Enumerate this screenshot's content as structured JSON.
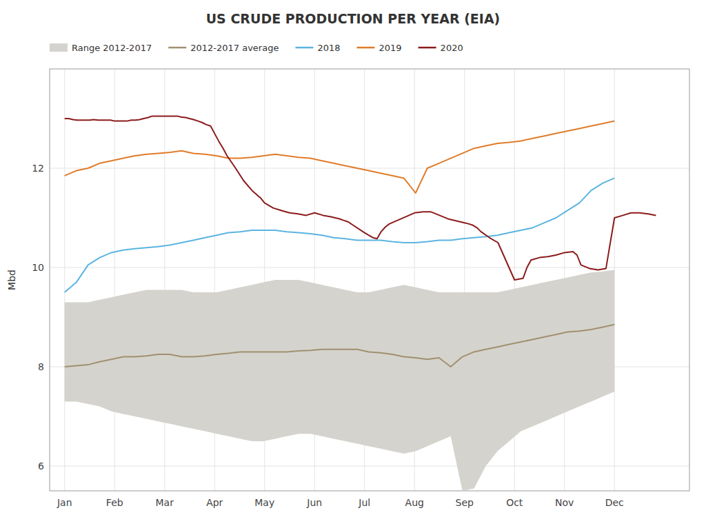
{
  "chart_data": {
    "type": "line",
    "title": "US CRUDE PRODUCTION PER YEAR (EIA)",
    "y_label": "Mbd",
    "xlim": [
      -0.3,
      12.5
    ],
    "xticks": [
      {
        "value": 0,
        "label": "Jan"
      },
      {
        "value": 1,
        "label": "Feb"
      },
      {
        "value": 2,
        "label": "Mar"
      },
      {
        "value": 3,
        "label": "Apr"
      },
      {
        "value": 4,
        "label": "May"
      },
      {
        "value": 5,
        "label": "Jun"
      },
      {
        "value": 6,
        "label": "Jul"
      },
      {
        "value": 7,
        "label": "Aug"
      },
      {
        "value": 8,
        "label": "Sep"
      },
      {
        "value": 9,
        "label": "Oct"
      },
      {
        "value": 10,
        "label": "Nov"
      },
      {
        "value": 11,
        "label": "Dec"
      }
    ],
    "ylim": [
      5.5,
      14.0
    ],
    "yticks": [
      6,
      8,
      10,
      12
    ],
    "grid": true,
    "legend": "upper left",
    "series": [
      {
        "name": "Range 2012-2017",
        "type": "band",
        "color": "#d5d3cd",
        "x": [
          0,
          0.234043,
          0.468085,
          0.702128,
          0.93617,
          1.170213,
          1.404255,
          1.638298,
          1.87234,
          2.106383,
          2.340426,
          2.574468,
          2.808511,
          3.042553,
          3.276596,
          3.510638,
          3.744681,
          3.978723,
          4.212766,
          4.446809,
          4.680851,
          4.914894,
          5.148936,
          5.382979,
          5.617021,
          5.851064,
          6.085106,
          6.319149,
          6.553191,
          6.787234,
          7.021277,
          7.255319,
          7.489362,
          7.723404,
          7.957447,
          8.191489,
          8.425532,
          8.659574,
          8.893617,
          9.12766,
          9.361702,
          9.595745,
          9.829787,
          10.06383,
          10.297872,
          10.531915,
          10.765957,
          11
        ],
        "lower": [
          7.3,
          7.3,
          7.25,
          7.2,
          7.1,
          7.05,
          7.0,
          6.95,
          6.9,
          6.85,
          6.8,
          6.75,
          6.7,
          6.65,
          6.6,
          6.55,
          6.5,
          6.5,
          6.55,
          6.6,
          6.65,
          6.65,
          6.6,
          6.55,
          6.5,
          6.45,
          6.4,
          6.35,
          6.3,
          6.25,
          6.3,
          6.4,
          6.5,
          6.6,
          5.5,
          5.55,
          6.0,
          6.3,
          6.5,
          6.7,
          6.8,
          6.9,
          7.0,
          7.1,
          7.2,
          7.3,
          7.4,
          7.5
        ],
        "upper": [
          9.3,
          9.3,
          9.3,
          9.35,
          9.4,
          9.45,
          9.5,
          9.55,
          9.55,
          9.55,
          9.55,
          9.5,
          9.5,
          9.5,
          9.55,
          9.6,
          9.65,
          9.7,
          9.75,
          9.75,
          9.75,
          9.7,
          9.65,
          9.6,
          9.55,
          9.5,
          9.5,
          9.55,
          9.6,
          9.65,
          9.6,
          9.55,
          9.5,
          9.5,
          9.5,
          9.5,
          9.5,
          9.5,
          9.55,
          9.6,
          9.65,
          9.7,
          9.75,
          9.8,
          9.85,
          9.9,
          9.92,
          9.95
        ]
      },
      {
        "name": "2012-2017 average",
        "type": "line",
        "color": "#a09070",
        "x": [
          0,
          0.234043,
          0.468085,
          0.702128,
          0.93617,
          1.170213,
          1.404255,
          1.638298,
          1.87234,
          2.106383,
          2.340426,
          2.574468,
          2.808511,
          3.042553,
          3.276596,
          3.510638,
          3.744681,
          3.978723,
          4.212766,
          4.446809,
          4.680851,
          4.914894,
          5.148936,
          5.382979,
          5.617021,
          5.851064,
          6.085106,
          6.319149,
          6.553191,
          6.787234,
          7.021277,
          7.255319,
          7.489362,
          7.723404,
          7.957447,
          8.191489,
          8.425532,
          8.659574,
          8.893617,
          9.12766,
          9.361702,
          9.595745,
          9.829787,
          10.06383,
          10.297872,
          10.531915,
          10.765957,
          11
        ],
        "values": [
          8.0,
          8.02,
          8.04,
          8.1,
          8.15,
          8.2,
          8.2,
          8.22,
          8.25,
          8.25,
          8.2,
          8.2,
          8.22,
          8.25,
          8.27,
          8.3,
          8.3,
          8.3,
          8.3,
          8.3,
          8.32,
          8.33,
          8.35,
          8.35,
          8.35,
          8.35,
          8.3,
          8.28,
          8.25,
          8.2,
          8.18,
          8.15,
          8.18,
          8.0,
          8.2,
          8.3,
          8.35,
          8.4,
          8.45,
          8.5,
          8.55,
          8.6,
          8.65,
          8.7,
          8.72,
          8.75,
          8.8,
          8.85
        ]
      },
      {
        "name": "2018",
        "type": "line",
        "color": "#5ab4e0",
        "x": [
          0,
          0.234043,
          0.468085,
          0.702128,
          0.93617,
          1.170213,
          1.404255,
          1.638298,
          1.87234,
          2.106383,
          2.340426,
          2.574468,
          2.808511,
          3.042553,
          3.276596,
          3.510638,
          3.744681,
          3.978723,
          4.212766,
          4.446809,
          4.680851,
          4.914894,
          5.148936,
          5.382979,
          5.617021,
          5.851064,
          6.085106,
          6.319149,
          6.553191,
          6.787234,
          7.021277,
          7.255319,
          7.489362,
          7.723404,
          7.957447,
          8.191489,
          8.425532,
          8.659574,
          8.893617,
          9.12766,
          9.361702,
          9.595745,
          9.829787,
          10.06383,
          10.297872,
          10.531915,
          10.765957,
          11
        ],
        "values": [
          9.5,
          9.7,
          10.05,
          10.2,
          10.3,
          10.35,
          10.38,
          10.4,
          10.42,
          10.45,
          10.5,
          10.55,
          10.6,
          10.65,
          10.7,
          10.72,
          10.75,
          10.75,
          10.75,
          10.72,
          10.7,
          10.68,
          10.65,
          10.6,
          10.58,
          10.55,
          10.55,
          10.55,
          10.52,
          10.5,
          10.5,
          10.52,
          10.55,
          10.55,
          10.58,
          10.6,
          10.62,
          10.65,
          10.7,
          10.75,
          10.8,
          10.9,
          11.0,
          11.15,
          11.3,
          11.55,
          11.7,
          11.8
        ]
      },
      {
        "name": "2019",
        "type": "line",
        "color": "#e07b28",
        "x": [
          0,
          0.234043,
          0.468085,
          0.702128,
          0.93617,
          1.170213,
          1.404255,
          1.638298,
          1.87234,
          2.106383,
          2.340426,
          2.574468,
          2.808511,
          3.042553,
          3.276596,
          3.510638,
          3.744681,
          3.978723,
          4.212766,
          4.446809,
          4.680851,
          4.914894,
          5.148936,
          5.382979,
          5.617021,
          5.851064,
          6.085106,
          6.319149,
          6.553191,
          6.787234,
          7.021277,
          7.255319,
          7.489362,
          7.723404,
          7.957447,
          8.191489,
          8.425532,
          8.659574,
          8.893617,
          9.12766,
          9.361702,
          9.595745,
          9.829787,
          10.06383,
          10.297872,
          10.531915,
          10.765957,
          11
        ],
        "values": [
          11.85,
          11.95,
          12.0,
          12.1,
          12.15,
          12.2,
          12.25,
          12.28,
          12.3,
          12.32,
          12.35,
          12.3,
          12.28,
          12.25,
          12.2,
          12.2,
          12.22,
          12.25,
          12.28,
          12.25,
          12.22,
          12.2,
          12.15,
          12.1,
          12.05,
          12.0,
          11.95,
          11.9,
          11.85,
          11.8,
          11.5,
          12.0,
          12.1,
          12.2,
          12.3,
          12.4,
          12.45,
          12.5,
          12.52,
          12.55,
          12.6,
          12.65,
          12.7,
          12.75,
          12.8,
          12.85,
          12.9,
          12.95
        ]
      },
      {
        "name": "2020",
        "type": "line",
        "color": "#8b1a1a",
        "x": [
          0.0,
          0.08,
          0.17,
          0.25,
          0.33,
          0.42,
          0.5,
          0.58,
          0.67,
          0.75,
          0.83,
          0.92,
          1.0,
          1.08,
          1.17,
          1.25,
          1.33,
          1.42,
          1.5,
          1.58,
          1.67,
          1.75,
          1.83,
          1.92,
          2.0,
          2.08,
          2.17,
          2.25,
          2.33,
          2.42,
          2.5,
          2.58,
          2.67,
          2.75,
          2.83,
          2.92,
          3.0,
          3.08,
          3.17,
          3.25,
          3.42,
          3.58,
          3.75,
          3.92,
          4.0,
          4.17,
          4.33,
          4.5,
          4.67,
          4.83,
          5.0,
          5.17,
          5.33,
          5.5,
          5.58,
          5.67,
          6.0,
          6.17,
          6.25,
          6.33,
          6.42,
          6.5,
          7.0,
          7.17,
          7.33,
          7.5,
          7.67,
          8.0,
          8.08,
          8.17,
          8.25,
          8.33,
          8.5,
          8.67,
          9.0,
          9.17,
          9.25,
          9.33,
          9.5,
          9.67,
          9.83,
          10.0,
          10.17,
          10.25,
          10.33,
          10.5,
          10.67,
          10.83,
          11.0,
          11.17,
          11.33,
          11.5,
          11.67,
          11.83
        ],
        "values": [
          13.0,
          13.0,
          12.98,
          12.97,
          12.97,
          12.97,
          12.97,
          12.98,
          12.97,
          12.97,
          12.97,
          12.97,
          12.95,
          12.95,
          12.95,
          12.95,
          12.97,
          12.97,
          12.98,
          13.0,
          13.02,
          13.05,
          13.05,
          13.05,
          13.05,
          13.05,
          13.05,
          13.05,
          13.03,
          13.02,
          13.0,
          12.98,
          12.95,
          12.92,
          12.88,
          12.85,
          12.7,
          12.55,
          12.4,
          12.25,
          12.0,
          11.75,
          11.55,
          11.4,
          11.3,
          11.2,
          11.15,
          11.1,
          11.08,
          11.05,
          11.1,
          11.05,
          11.02,
          10.98,
          10.95,
          10.92,
          10.7,
          10.6,
          10.58,
          10.72,
          10.82,
          10.88,
          11.1,
          11.12,
          11.12,
          11.05,
          10.98,
          10.9,
          10.88,
          10.85,
          10.8,
          10.72,
          10.6,
          10.5,
          9.75,
          9.78,
          10.0,
          10.15,
          10.2,
          10.22,
          10.25,
          10.3,
          10.32,
          10.25,
          10.05,
          9.98,
          9.95,
          9.98,
          11.0,
          11.05,
          11.1,
          11.1,
          11.08,
          11.05
        ]
      }
    ]
  }
}
